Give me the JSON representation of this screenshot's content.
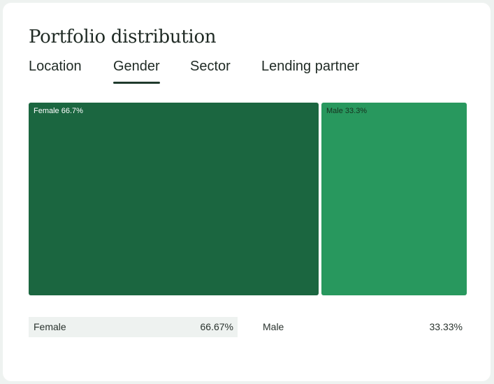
{
  "title": "Portfolio distribution",
  "tabs": [
    {
      "label": "Location",
      "active": false
    },
    {
      "label": "Gender",
      "active": true
    },
    {
      "label": "Sector",
      "active": false
    },
    {
      "label": "Lending partner",
      "active": false
    }
  ],
  "treemap": {
    "tiles": [
      {
        "name": "Female",
        "label": "Female 66.7%",
        "share": 0.6667,
        "color": "#1b6640",
        "text_color": "#ffffff"
      },
      {
        "name": "Male",
        "label": "Male 33.3%",
        "share": 0.3333,
        "color": "#28985e",
        "text_color": "#16311f"
      }
    ]
  },
  "legend": [
    {
      "name": "Female",
      "percent": "66.67%",
      "highlighted": true
    },
    {
      "name": "Male",
      "percent": "33.33%",
      "highlighted": false
    }
  ],
  "colors": {
    "highlight_row": "#eef2f0",
    "tab_underline": "#1f3a2c"
  }
}
